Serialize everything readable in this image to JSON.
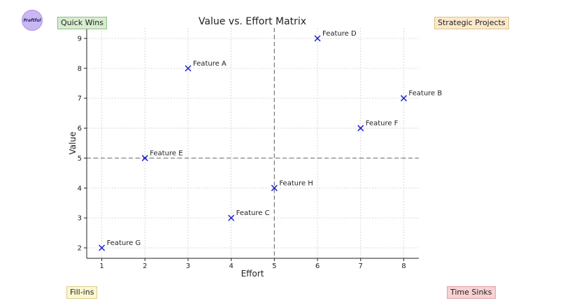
{
  "logo_text": "Fraftful",
  "chart_data": {
    "type": "scatter",
    "title": "Value vs. Effort Matrix",
    "xlabel": "Effort",
    "ylabel": "Value",
    "xlim": [
      0.65,
      8.35
    ],
    "ylim": [
      1.65,
      9.35
    ],
    "x_ticks": [
      1,
      2,
      3,
      4,
      5,
      6,
      7,
      8
    ],
    "y_ticks": [
      2,
      3,
      4,
      5,
      6,
      7,
      8,
      9
    ],
    "grid": true,
    "marker_color": "#1f1fcf",
    "divider_x": 5,
    "divider_y": 5,
    "points": [
      {
        "label": "Feature A",
        "x": 3,
        "y": 8
      },
      {
        "label": "Feature B",
        "x": 8,
        "y": 7
      },
      {
        "label": "Feature C",
        "x": 4,
        "y": 3
      },
      {
        "label": "Feature D",
        "x": 6,
        "y": 9
      },
      {
        "label": "Feature E",
        "x": 2,
        "y": 5
      },
      {
        "label": "Feature F",
        "x": 7,
        "y": 6
      },
      {
        "label": "Feature G",
        "x": 1,
        "y": 2
      },
      {
        "label": "Feature H",
        "x": 5,
        "y": 4
      }
    ]
  },
  "quadrants": {
    "quick_wins": {
      "label": "Quick Wins",
      "bg": "#d8ecd2",
      "border": "#8fbf84"
    },
    "strategic": {
      "label": "Strategic Projects",
      "bg": "#fbe9cc",
      "border": "#e2c08a"
    },
    "fill_ins": {
      "label": "Fill-ins",
      "bg": "#fbf7cf",
      "border": "#d9d08a"
    },
    "time_sinks": {
      "label": "Time Sinks",
      "bg": "#f8d2d2",
      "border": "#e0a1a1"
    }
  }
}
